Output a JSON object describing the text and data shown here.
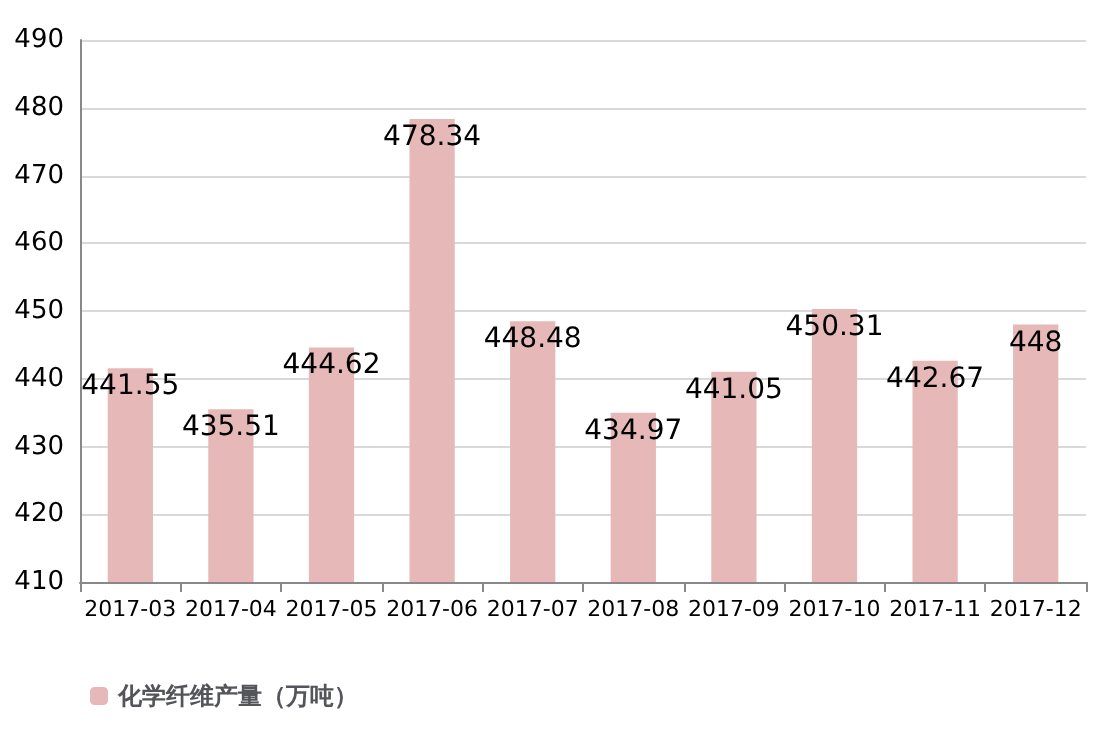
{
  "chart_data": {
    "type": "bar",
    "categories": [
      "2017-03",
      "2017-04",
      "2017-05",
      "2017-06",
      "2017-07",
      "2017-08",
      "2017-09",
      "2017-10",
      "2017-11",
      "2017-12"
    ],
    "series": [
      {
        "name": "化学纤维产量（万吨）",
        "color": "#e6b9b8",
        "values": [
          441.55,
          435.51,
          444.62,
          478.34,
          448.48,
          434.97,
          441.05,
          450.31,
          442.67,
          448
        ]
      }
    ],
    "ylim": [
      410,
      490
    ],
    "yticks": [
      410,
      420,
      430,
      440,
      450,
      460,
      470,
      480,
      490
    ],
    "grid": "y",
    "legend": "bottom left",
    "data_labels": true
  }
}
